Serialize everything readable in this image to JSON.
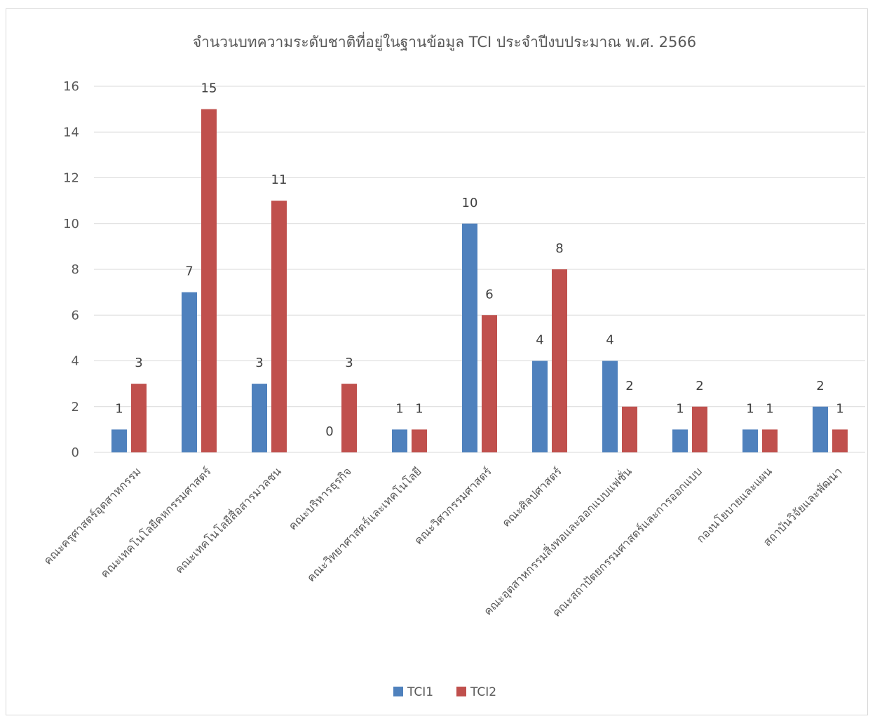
{
  "chart_data": {
    "type": "bar",
    "title": "จำนวนบทความระดับชาติที่อยู่ในฐานข้อมูล TCI ประจำปีงบประมาณ พ.ศ. 2566",
    "xlabel": "",
    "ylabel": "",
    "ylim": [
      0,
      16
    ],
    "yticks": [
      0,
      2,
      4,
      6,
      8,
      10,
      12,
      14,
      16
    ],
    "grid": true,
    "legend_position": "bottom",
    "categories": [
      "คณะครุศาสตร์อุตสาหกรรม",
      "คณะเทคโนโลยีคหกรรมศาสตร์",
      "คณะเทคโนโลยีสื่อสารมวลชน",
      "คณะบริหารธุรกิจ",
      "คณะวิทยาศาสตร์และเทคโนโลยี",
      "คณะวิศวกรรมศาสตร์",
      "คณะศิลปศาสตร์",
      "คณะอุตสาหกรรมสิ่งทอและออกแบบแฟชั่น",
      "คณะสถาปัตยกรรมศาสตร์และการออกแบบ",
      "กองนโยบายและแผน",
      "สถาบันวิจัยและพัฒนา"
    ],
    "series": [
      {
        "name": "TCI1",
        "color": "#4F81BD",
        "values": [
          1,
          7,
          3,
          0,
          1,
          10,
          4,
          4,
          1,
          1,
          2
        ]
      },
      {
        "name": "TCI2",
        "color": "#C0504D",
        "values": [
          3,
          15,
          11,
          3,
          1,
          6,
          8,
          2,
          2,
          1,
          1
        ]
      }
    ]
  }
}
